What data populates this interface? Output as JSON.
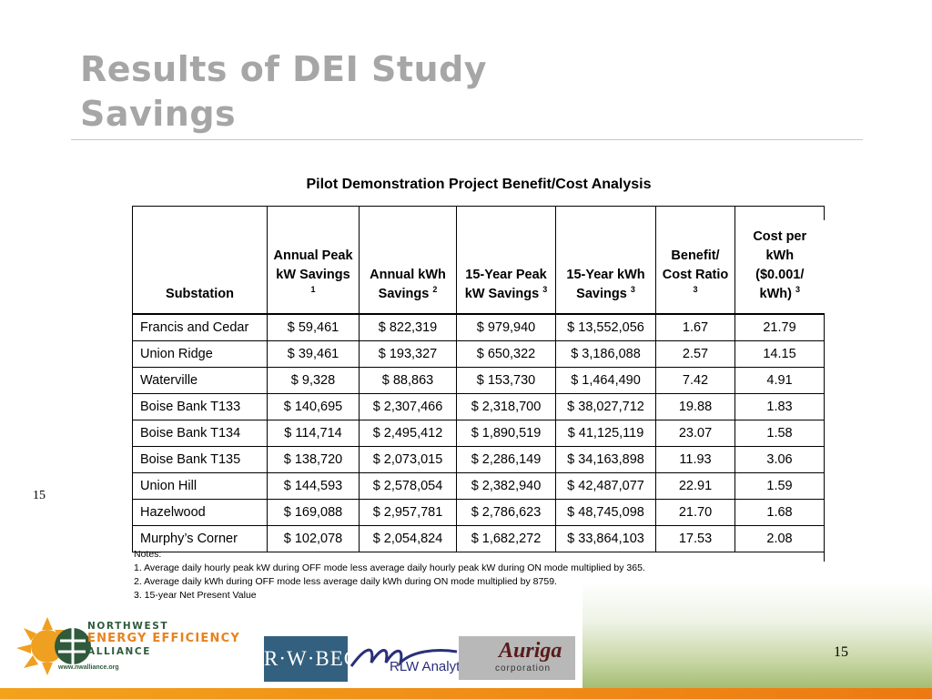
{
  "slide": {
    "title_line1": "Results of DEI Study",
    "title_line2": "Savings",
    "page_number_left": "15",
    "page_number_right": "15"
  },
  "table": {
    "caption": "Pilot Demonstration Project Benefit/Cost Analysis",
    "headers": [
      {
        "text": "Substation",
        "note": ""
      },
      {
        "text": "Annual Peak kW Savings",
        "note": "1"
      },
      {
        "text": "Annual kWh Savings",
        "note": "2"
      },
      {
        "text": "15-Year Peak kW Savings",
        "note": "3"
      },
      {
        "text": "15-Year kWh Savings",
        "note": "3"
      },
      {
        "text": "Benefit/ Cost Ratio",
        "note": "3"
      },
      {
        "text": "Cost per kWh ($0.001/ kWh)",
        "note": "3"
      }
    ],
    "rows": [
      [
        "Francis and Cedar",
        "$ 59,461",
        "$ 822,319",
        "$ 979,940",
        "$ 13,552,056",
        "1.67",
        "21.79"
      ],
      [
        "Union Ridge",
        "$ 39,461",
        "$ 193,327",
        "$ 650,322",
        "$ 3,186,088",
        "2.57",
        "14.15"
      ],
      [
        "Waterville",
        "$ 9,328",
        "$ 88,863",
        "$ 153,730",
        "$ 1,464,490",
        "7.42",
        "4.91"
      ],
      [
        "Boise Bank T133",
        "$ 140,695",
        "$ 2,307,466",
        "$ 2,318,700",
        "$ 38,027,712",
        "19.88",
        "1.83"
      ],
      [
        "Boise Bank T134",
        "$ 114,714",
        "$ 2,495,412",
        "$ 1,890,519",
        "$ 41,125,119",
        "23.07",
        "1.58"
      ],
      [
        "Boise Bank T135",
        "$ 138,720",
        "$ 2,073,015",
        "$ 2,286,149",
        "$ 34,163,898",
        "11.93",
        "3.06"
      ],
      [
        "Union Hill",
        "$ 144,593",
        "$ 2,578,054",
        "$ 2,382,940",
        "$ 42,487,077",
        "22.91",
        "1.59"
      ],
      [
        "Hazelwood",
        "$ 169,088",
        "$ 2,957,781",
        "$ 2,786,623",
        "$ 48,745,098",
        "21.70",
        "1.68"
      ],
      [
        "Murphy’s Corner",
        "$ 102,078",
        "$ 2,054,824",
        "$ 1,682,272",
        "$ 33,864,103",
        "17.53",
        "2.08"
      ]
    ],
    "notes_label": "Notes:",
    "notes": [
      "1.  Average daily hourly peak kW during OFF mode less average daily hourly peak kW during ON mode multiplied by 365.",
      "2.  Average daily kWh during OFF mode less average daily kWh during ON mode multiplied by 8759.",
      "3.  15-year Net Present Value"
    ]
  },
  "footer": {
    "nwea_line1": "NORTHWEST",
    "nwea_line2": "ENERGY EFFICIENCY",
    "nwea_line3": "ALLIANCE",
    "nwea_url": "www.nwalliance.org",
    "rwbeck_logo": "R·W·BECK",
    "rlw_logo": "RLW Analytics",
    "auriga_logo": "Auriga",
    "auriga_sub": "corporation"
  },
  "colors": {
    "title": "#a6a6a6",
    "accent_orange": "#e9821c",
    "nwea_green": "#2f5a3c",
    "rwbeck_blue": "#33607f"
  },
  "icons": [
    "sun-logo-icon",
    "globe-logo-icon",
    "rlw-swoosh-icon"
  ]
}
